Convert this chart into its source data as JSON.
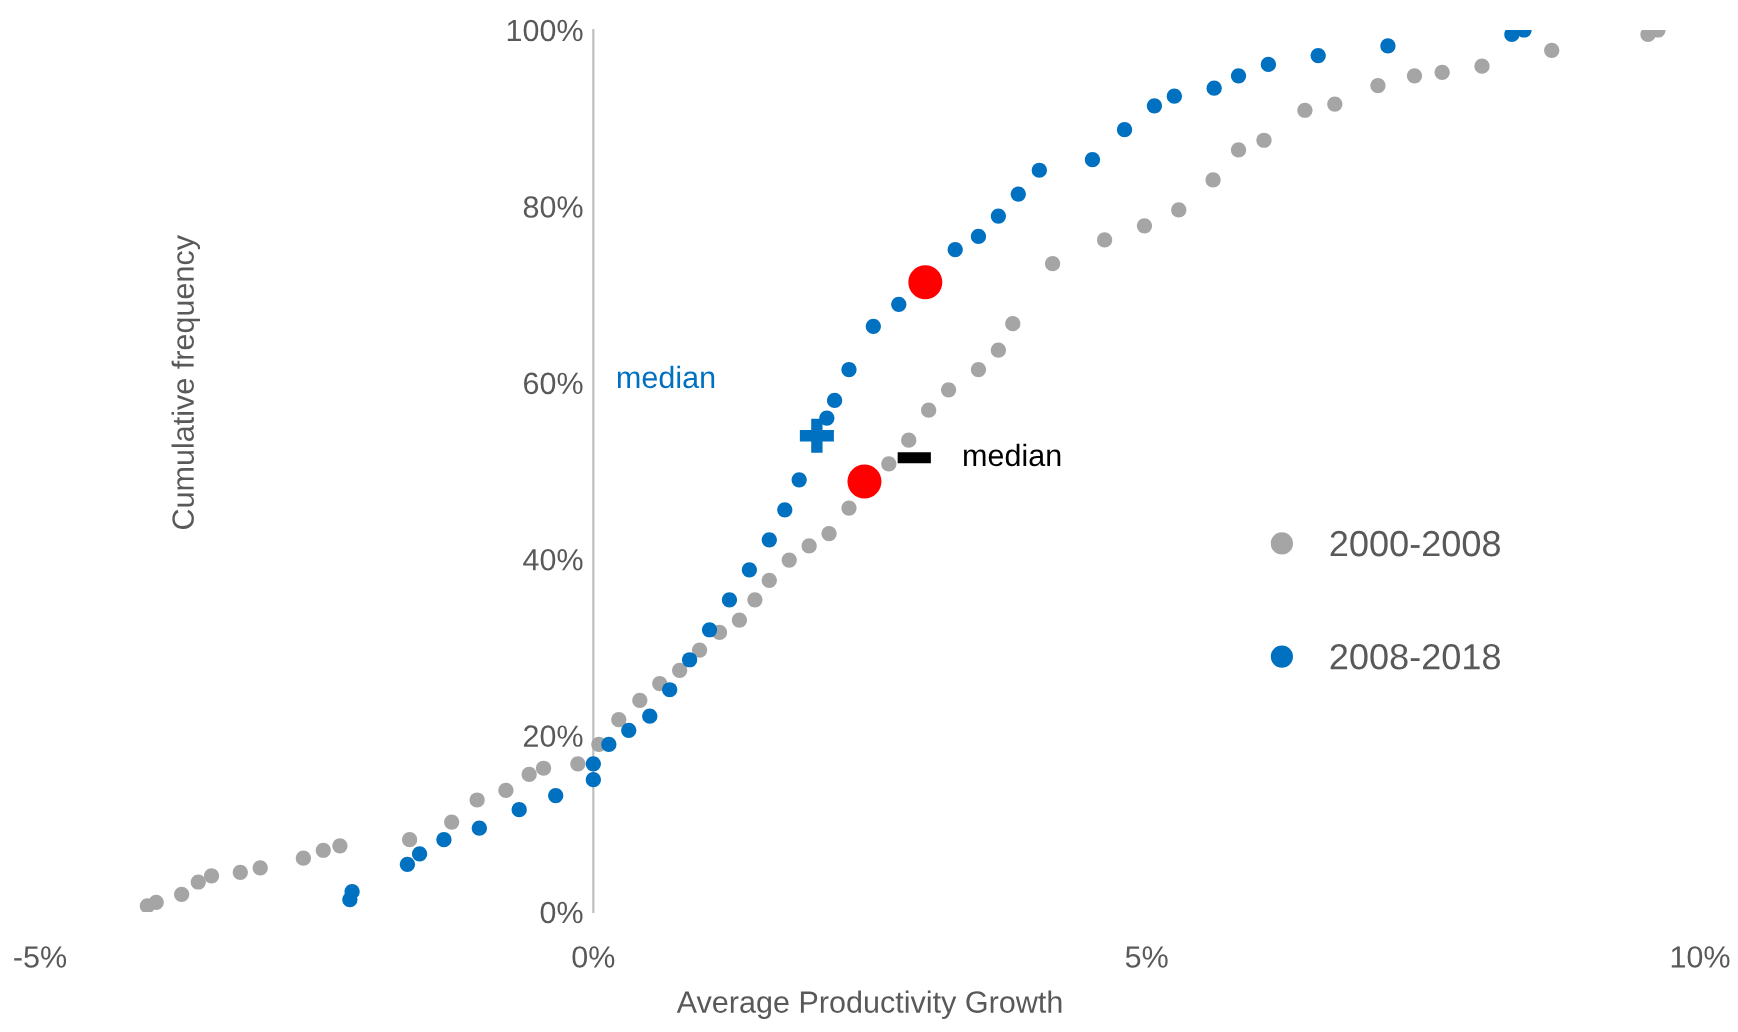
{
  "chart_data": {
    "type": "scatter",
    "xlabel": "Average Productivity Growth",
    "ylabel": "Cumulative frequency",
    "xlim": [
      -5,
      10
    ],
    "ylim": [
      0,
      100
    ],
    "xticks": [
      {
        "value": -5,
        "label": "-5%"
      },
      {
        "value": 0,
        "label": "0%"
      },
      {
        "value": 5,
        "label": "5%"
      },
      {
        "value": 10,
        "label": "10%"
      }
    ],
    "yticks": [
      {
        "value": 0,
        "label": "0%"
      },
      {
        "value": 20,
        "label": "20%"
      },
      {
        "value": 40,
        "label": "40%"
      },
      {
        "value": 60,
        "label": "60%"
      },
      {
        "value": 80,
        "label": "80%"
      },
      {
        "value": 100,
        "label": "100%"
      }
    ],
    "grid": false,
    "legend": "right",
    "marker": "circle",
    "series": [
      {
        "name": "2000-2008",
        "color": "#a5a5a5",
        "x": [
          -4.03,
          -3.95,
          -3.72,
          -3.57,
          -3.45,
          -3.19,
          -3.01,
          -2.62,
          -2.44,
          -2.29,
          -1.66,
          -1.28,
          -1.05,
          -0.79,
          -0.58,
          -0.45,
          -0.14,
          0.05,
          0.23,
          0.42,
          0.6,
          0.78,
          0.96,
          1.14,
          1.32,
          1.46,
          1.59,
          1.77,
          1.95,
          2.13,
          2.31,
          2.67,
          2.85,
          3.03,
          3.21,
          3.48,
          3.66,
          3.79,
          4.15,
          4.62,
          4.98,
          5.29,
          5.6,
          5.83,
          6.06,
          6.43,
          6.7,
          7.09,
          7.42,
          7.67,
          8.03,
          8.66,
          9.53,
          9.62
        ],
        "values": [
          0.7,
          1.1,
          2.0,
          3.4,
          4.1,
          4.5,
          5.0,
          6.1,
          7.0,
          7.5,
          8.2,
          10.2,
          12.7,
          13.8,
          15.6,
          16.3,
          16.8,
          19.0,
          21.8,
          24.0,
          25.9,
          27.4,
          29.7,
          31.7,
          33.1,
          35.4,
          37.6,
          39.9,
          41.5,
          42.9,
          45.8,
          50.8,
          53.5,
          56.9,
          59.2,
          61.5,
          63.7,
          66.7,
          73.5,
          76.2,
          77.8,
          79.6,
          83.0,
          86.4,
          87.5,
          90.9,
          91.6,
          93.7,
          94.8,
          95.2,
          95.9,
          97.7,
          99.5,
          100
        ]
      },
      {
        "name": "2008-2018",
        "color": "#0070c0",
        "x": [
          -2.2,
          -2.18,
          -1.68,
          -1.57,
          -1.35,
          -1.03,
          -0.67,
          -0.34,
          0.0,
          0.0,
          0.14,
          0.32,
          0.51,
          0.69,
          0.87,
          1.05,
          1.23,
          1.41,
          1.59,
          1.73,
          1.86,
          2.11,
          2.18,
          2.31,
          2.53,
          2.76,
          3.27,
          3.48,
          3.66,
          3.84,
          4.03,
          4.51,
          4.8,
          5.07,
          5.25,
          5.61,
          5.83,
          6.1,
          6.55,
          7.18,
          8.3,
          8.41
        ],
        "values": [
          1.4,
          2.3,
          5.4,
          6.6,
          8.2,
          9.5,
          11.6,
          13.2,
          15.0,
          16.8,
          19.0,
          20.6,
          22.2,
          25.2,
          28.6,
          32.0,
          35.4,
          38.8,
          42.2,
          45.6,
          49.0,
          56.0,
          58.0,
          61.5,
          66.4,
          68.9,
          75.1,
          76.6,
          78.9,
          81.4,
          84.1,
          85.3,
          88.7,
          91.4,
          92.5,
          93.4,
          94.8,
          96.1,
          97.1,
          98.2,
          99.5,
          100
        ]
      },
      {
        "color": "#ff0000",
        "x": [
          2.45,
          3.0
        ],
        "values": [
          48.8,
          71.4
        ]
      },
      {
        "color": "#0070c0",
        "marker": "cross",
        "x": [
          2.02
        ],
        "values": [
          54.0
        ]
      },
      {
        "type": "line",
        "color": "#000000",
        "marker": "none",
        "x": [
          2.75,
          3.05
        ],
        "values": [
          51.5,
          51.5
        ]
      }
    ],
    "annotations": [
      "median",
      "median"
    ]
  }
}
